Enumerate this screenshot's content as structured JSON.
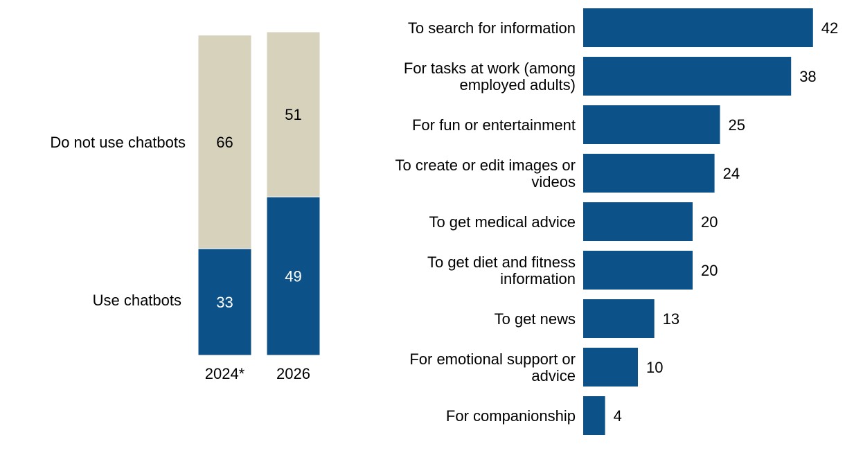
{
  "colors": {
    "use": "#0c5289",
    "not_use": "#d6d2bc",
    "bar": "#0c5289",
    "label_on_dark": "#ffffff",
    "label_on_light": "#000000",
    "text": "#000000"
  },
  "chart_data": [
    {
      "type": "bar",
      "stacked": true,
      "title": "",
      "categories": [
        "2024*",
        "2026"
      ],
      "series": [
        {
          "name": "Use chatbots",
          "values": [
            33,
            49
          ]
        },
        {
          "name": "Do not use chatbots",
          "values": [
            66,
            51
          ]
        }
      ],
      "legend": "left of bars",
      "ylim": [
        0,
        100
      ],
      "grid": false
    },
    {
      "type": "bar",
      "orientation": "horizontal",
      "title": "",
      "categories": [
        "To search for information",
        "For tasks at work (among employed adults)",
        "For fun or entertainment",
        "To create or edit images or videos",
        "To get medical advice",
        "To get diet and fitness information",
        "To get news",
        "For emotional support or advice",
        "For companionship"
      ],
      "values": [
        42,
        38,
        25,
        24,
        20,
        20,
        13,
        10,
        4
      ],
      "xlim": [
        0,
        42
      ],
      "grid": false
    }
  ]
}
